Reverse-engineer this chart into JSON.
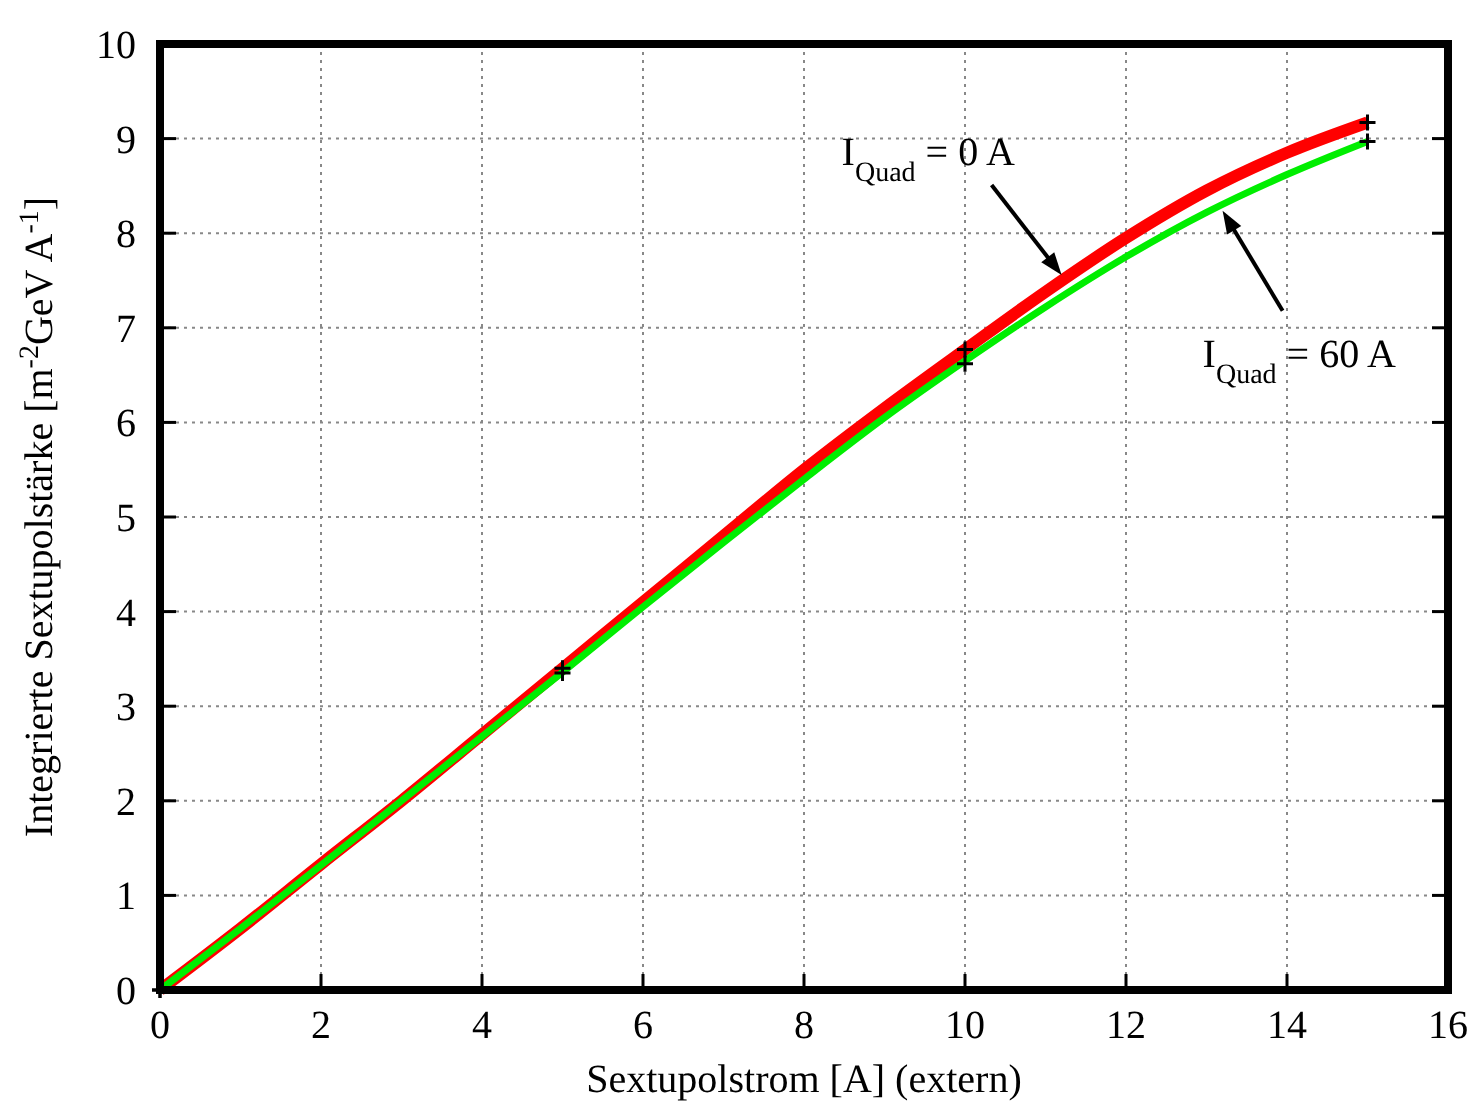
{
  "chart_data": {
    "type": "line",
    "xlabel": "Sextupolstrom [A] (extern)",
    "ylabel": "Integrierte Sextupolstärke [m$^{-2}$GeV A$^{-1}$]",
    "xlim": [
      0,
      16
    ],
    "xticks": [
      0,
      2,
      4,
      6,
      8,
      10,
      12,
      14,
      16
    ],
    "ylim": [
      0,
      10
    ],
    "yticks": [
      0,
      1,
      2,
      3,
      4,
      5,
      6,
      7,
      8,
      9,
      10
    ],
    "grid": true,
    "legend": false,
    "line_style": "solid",
    "series": [
      {
        "name": "I$_{Quad}$ = 0 A",
        "color": "#ff0000",
        "x": [
          0,
          1,
          2,
          3,
          4,
          5,
          6,
          7,
          8,
          9,
          10,
          11,
          12,
          13,
          14,
          15
        ],
        "values": [
          0,
          0.65,
          1.33,
          2.0,
          2.7,
          3.4,
          4.1,
          4.8,
          5.5,
          6.15,
          6.77,
          7.38,
          7.95,
          8.45,
          8.85,
          9.17
        ]
      },
      {
        "name": "I$_{Quad}$ = 60 A",
        "color": "#00ee00",
        "x": [
          0,
          1,
          2,
          3,
          4,
          5,
          6,
          7,
          8,
          9,
          10,
          11,
          12,
          13,
          14,
          15
        ],
        "values": [
          0,
          0.65,
          1.32,
          2.0,
          2.68,
          3.36,
          4.05,
          4.73,
          5.4,
          6.05,
          6.65,
          7.22,
          7.75,
          8.22,
          8.62,
          8.97
        ]
      },
      {
        "type": "scatter",
        "color": "#000000",
        "marker": "cross",
        "x": [
          0,
          5,
          10,
          15
        ],
        "values": [
          0,
          3.4,
          6.77,
          9.17
        ]
      },
      {
        "type": "scatter",
        "color": "#000000",
        "marker": "cross",
        "x": [
          0,
          5,
          10,
          15
        ],
        "values": [
          0,
          3.35,
          6.62,
          8.97
        ]
      }
    ]
  }
}
